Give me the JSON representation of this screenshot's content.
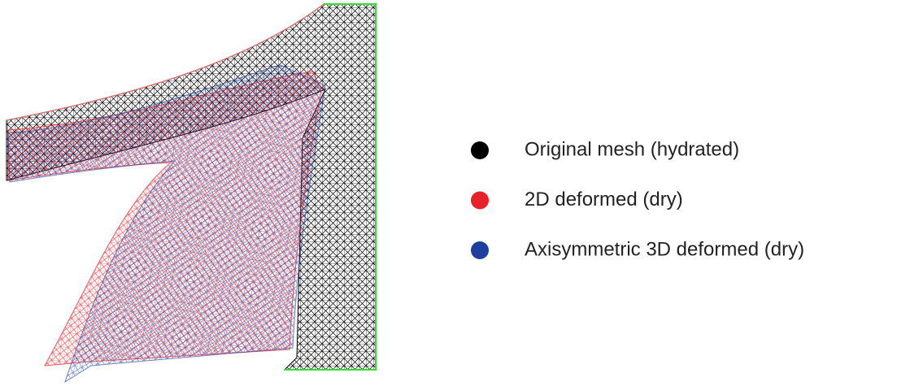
{
  "legend": [
    {
      "label": "Original mesh (hydrated)",
      "color": "#000000"
    },
    {
      "label": "2D deformed (dry)",
      "color": "#e8202a"
    },
    {
      "label": "Axisymmetric 3D deformed (dry)",
      "color": "#1f3fa0"
    }
  ]
}
